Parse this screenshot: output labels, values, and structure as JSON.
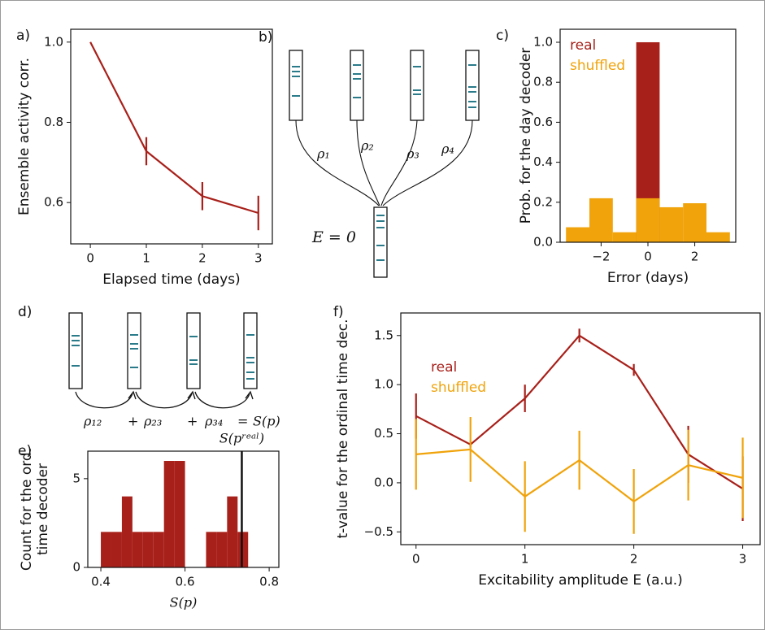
{
  "chart_data": [
    {
      "type": "line",
      "label": "a)",
      "xlabel": "Elapsed time (days)",
      "ylabel": "Ensemble activity corr.",
      "x": [
        0,
        1,
        2,
        3
      ],
      "series": [
        {
          "color": "#a8201a",
          "values": [
            1.0,
            0.728,
            0.616,
            0.574
          ],
          "errors": [
            null,
            0.035,
            0.035,
            0.043
          ]
        }
      ],
      "xlim": [
        -0.35,
        3.25
      ],
      "ylim": [
        0.497,
        1.032
      ],
      "xticks": [
        0,
        1,
        2,
        3
      ],
      "yticks": [
        0.6,
        0.8,
        {
          "value": 1,
          "label": "1.0"
        }
      ]
    },
    {
      "type": "histogram",
      "label": "c)",
      "xlabel": "Error (days)",
      "ylabel": "Prob. for the day decoder",
      "bins": [
        -3.5,
        -2.5,
        -1.5,
        -0.5,
        0.5,
        1.5,
        2.5,
        3.5
      ],
      "series": [
        {
          "name": "real",
          "color": "#a8201a",
          "values": [
            0,
            0,
            0,
            1.0,
            0,
            0,
            0
          ]
        },
        {
          "name": "shuffled",
          "color": "#f0a30a",
          "values": [
            0.075,
            0.22,
            0.05,
            0.22,
            0.175,
            0.195,
            0.05
          ]
        }
      ],
      "xlim": [
        -3.75,
        3.75
      ],
      "ylim": [
        0,
        1.065
      ],
      "xticks": [
        {
          "value": -2,
          "label": "−2"
        },
        0,
        2
      ],
      "yticks": [
        {
          "value": 0,
          "label": "0.0"
        },
        0.2,
        0.4,
        0.6,
        0.8,
        {
          "value": 1,
          "label": "1.0"
        }
      ],
      "legend": "upper left"
    },
    {
      "type": "histogram",
      "label": "e)",
      "xlabel": "S(p)",
      "ylabel": [
        "Count for the ord.",
        "time decoder"
      ],
      "bins": [
        0.4,
        0.425,
        0.45,
        0.475,
        0.5,
        0.525,
        0.55,
        0.575,
        0.6,
        0.625,
        0.65,
        0.675,
        0.7,
        0.725,
        0.75
      ],
      "series": [
        {
          "color": "#a8201a",
          "values": [
            2,
            2,
            4,
            2,
            2,
            2,
            6,
            6,
            0,
            0,
            2,
            2,
            4,
            2
          ]
        }
      ],
      "vline": {
        "x": 0.735,
        "label": "S(pʳᵉᵃˡ)"
      },
      "xlim": [
        0.369,
        0.823
      ],
      "ylim": [
        0,
        6.55
      ],
      "xticks": [
        0.4,
        0.6,
        0.8
      ],
      "yticks": [
        0,
        5
      ]
    },
    {
      "type": "line",
      "label": "f)",
      "xlabel": "Excitability amplitude E (a.u.)",
      "ylabel": "t-value for the ordinal time dec.",
      "x": [
        0,
        0.5,
        1,
        1.5,
        2,
        2.5,
        3
      ],
      "series": [
        {
          "name": "real",
          "color": "#a8201a",
          "values": [
            0.68,
            0.39,
            0.86,
            1.5,
            1.15,
            0.29,
            -0.06
          ],
          "errors": [
            0.23,
            0.03,
            0.14,
            0.07,
            0.06,
            0.29,
            0.33
          ]
        },
        {
          "name": "shuffled",
          "color": "#f0a30a",
          "values": [
            0.29,
            0.34,
            -0.14,
            0.23,
            -0.19,
            0.18,
            0.05
          ],
          "errors": [
            0.36,
            0.33,
            0.36,
            0.3,
            0.33,
            0.36,
            0.41
          ]
        }
      ],
      "xlim": [
        -0.14,
        3.16
      ],
      "ylim": [
        -0.63,
        1.73
      ],
      "xticks": [
        0,
        1,
        2,
        3
      ],
      "yticks": [
        {
          "value": -0.5,
          "label": "−0.5"
        },
        {
          "value": 0,
          "label": "0.0"
        },
        0.5,
        {
          "value": 1,
          "label": "1.0"
        },
        1.5
      ],
      "legend": "upper left"
    }
  ],
  "diagram_b": {
    "label": "b)",
    "rho": [
      "ρ₁",
      "ρ₂",
      "ρ₃",
      "ρ₄"
    ],
    "bottom": "E = 0"
  },
  "diagram_d": {
    "label": "d)",
    "terms": [
      "ρ₁₂",
      "+",
      "ρ₂₃",
      "+",
      "ρ₃₄",
      "=",
      "S(p)"
    ]
  }
}
